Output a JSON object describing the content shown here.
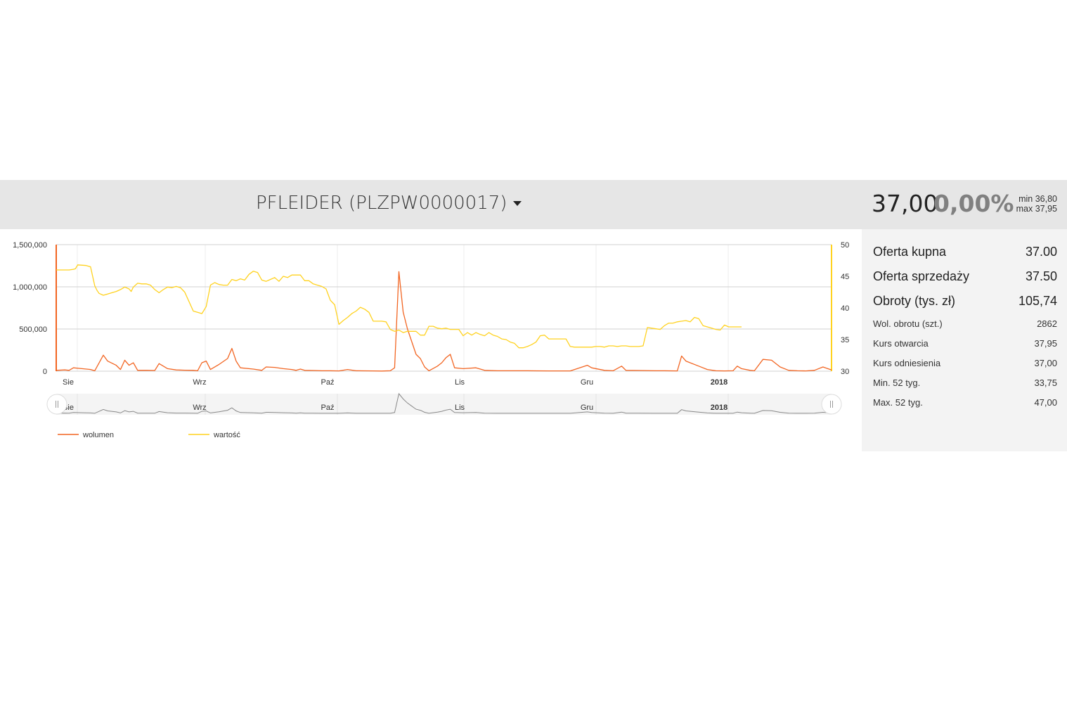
{
  "header": {
    "title": "PFLEIDER (PLZPW0000017)",
    "price": "37,00",
    "change": "0,00%",
    "min": "min 36,80",
    "max": "max 37,95"
  },
  "side": {
    "big": [
      {
        "label": "Oferta kupna",
        "value": "37.00"
      },
      {
        "label": "Oferta sprzedaży",
        "value": "37.50"
      },
      {
        "label": "Obroty (tys. zł)",
        "value": "105,74"
      }
    ],
    "small": [
      {
        "label": "Wol. obrotu (szt.)",
        "value": "2862"
      },
      {
        "label": "Kurs otwarcia",
        "value": "37,95"
      },
      {
        "label": "Kurs odniesienia",
        "value": "37,00"
      },
      {
        "label": "Min. 52 tyg.",
        "value": "33,75"
      },
      {
        "label": "Max. 52 tyg.",
        "value": "47,00"
      }
    ]
  },
  "colors": {
    "volume": "#f26522",
    "value": "#ffd21f",
    "grid": "#d0d0d0",
    "navigator": "#888888",
    "header_bg": "#e6e6e6",
    "side_bg": "#f3f3f3"
  },
  "chart_data": {
    "type": "line",
    "x_months": [
      "Sie",
      "Wrz",
      "Paź",
      "Lis",
      "Gru",
      "2018"
    ],
    "y_left_ticks": [
      "0",
      "500,000",
      "1,000,000",
      "1,500,000"
    ],
    "y_right_ticks": [
      "30",
      "35",
      "40",
      "45",
      "50"
    ],
    "y_left_range": [
      0,
      1500000
    ],
    "y_right_range": [
      30,
      50
    ],
    "x_range_days": [
      0,
      181
    ],
    "navigator_labels": [
      "Sie",
      "Wrz",
      "Paź",
      "Lis",
      "Gru",
      "2018"
    ],
    "series": [
      {
        "name": "wolumen",
        "axis": "left",
        "points": [
          [
            0,
            10000
          ],
          [
            2,
            15000
          ],
          [
            3,
            10000
          ],
          [
            4,
            40000
          ],
          [
            6,
            30000
          ],
          [
            8,
            20000
          ],
          [
            9,
            5000
          ],
          [
            11,
            190000
          ],
          [
            12,
            120000
          ],
          [
            14,
            70000
          ],
          [
            15,
            20000
          ],
          [
            16,
            130000
          ],
          [
            17,
            70000
          ],
          [
            18,
            100000
          ],
          [
            19,
            10000
          ],
          [
            21,
            10000
          ],
          [
            23,
            8000
          ],
          [
            24,
            90000
          ],
          [
            26,
            30000
          ],
          [
            28,
            15000
          ],
          [
            30,
            12000
          ],
          [
            32,
            10000
          ],
          [
            33,
            5000
          ],
          [
            34,
            100000
          ],
          [
            35,
            120000
          ],
          [
            36,
            20000
          ],
          [
            38,
            80000
          ],
          [
            40,
            150000
          ],
          [
            41,
            270000
          ],
          [
            42,
            120000
          ],
          [
            43,
            40000
          ],
          [
            46,
            25000
          ],
          [
            48,
            10000
          ],
          [
            49,
            50000
          ],
          [
            51,
            45000
          ],
          [
            53,
            30000
          ],
          [
            55,
            20000
          ],
          [
            56,
            10000
          ],
          [
            57,
            25000
          ],
          [
            58,
            10000
          ],
          [
            60,
            8000
          ],
          [
            62,
            5000
          ],
          [
            64,
            5000
          ],
          [
            66,
            3000
          ],
          [
            68,
            20000
          ],
          [
            70,
            5000
          ],
          [
            72,
            4000
          ],
          [
            74,
            3000
          ],
          [
            76,
            2000
          ],
          [
            78,
            5000
          ],
          [
            79,
            40000
          ],
          [
            80,
            1180000
          ],
          [
            81,
            700000
          ],
          [
            82,
            500000
          ],
          [
            83,
            350000
          ],
          [
            84,
            200000
          ],
          [
            85,
            150000
          ],
          [
            86,
            50000
          ],
          [
            87,
            5000
          ],
          [
            89,
            60000
          ],
          [
            90,
            100000
          ],
          [
            91,
            160000
          ],
          [
            92,
            200000
          ],
          [
            93,
            40000
          ],
          [
            95,
            30000
          ],
          [
            98,
            40000
          ],
          [
            100,
            10000
          ],
          [
            103,
            5000
          ],
          [
            106,
            5000
          ],
          [
            110,
            5000
          ],
          [
            115,
            3000
          ],
          [
            120,
            3000
          ],
          [
            124,
            70000
          ],
          [
            125,
            40000
          ],
          [
            128,
            10000
          ],
          [
            130,
            5000
          ],
          [
            132,
            60000
          ],
          [
            133,
            10000
          ],
          [
            136,
            8000
          ],
          [
            140,
            5000
          ],
          [
            142,
            5000
          ],
          [
            145,
            3000
          ],
          [
            146,
            180000
          ],
          [
            147,
            120000
          ],
          [
            150,
            60000
          ],
          [
            152,
            20000
          ],
          [
            154,
            5000
          ],
          [
            156,
            3000
          ],
          [
            158,
            5000
          ],
          [
            159,
            60000
          ],
          [
            160,
            30000
          ],
          [
            162,
            10000
          ],
          [
            163,
            5000
          ],
          [
            165,
            140000
          ],
          [
            167,
            130000
          ],
          [
            169,
            50000
          ],
          [
            171,
            10000
          ],
          [
            173,
            5000
          ],
          [
            175,
            3000
          ],
          [
            177,
            10000
          ],
          [
            179,
            50000
          ],
          [
            181,
            15000
          ]
        ]
      },
      {
        "name": "wartość",
        "axis": "right",
        "points": [
          [
            0,
            46
          ],
          [
            3,
            46
          ],
          [
            4,
            46.1
          ],
          [
            4.5,
            46.2
          ],
          [
            5,
            46.8
          ],
          [
            7,
            46.7
          ],
          [
            8,
            46.5
          ],
          [
            9,
            43.5
          ],
          [
            9.5,
            42.8
          ],
          [
            10,
            42.3
          ],
          [
            11,
            42
          ],
          [
            12,
            42.2
          ],
          [
            13,
            42.4
          ],
          [
            14,
            42.6
          ],
          [
            15,
            42.9
          ],
          [
            16,
            43.3
          ],
          [
            17,
            43
          ],
          [
            17.5,
            42.6
          ],
          [
            18,
            43.3
          ],
          [
            19,
            43.9
          ],
          [
            20,
            43.8
          ],
          [
            21,
            43.8
          ],
          [
            22,
            43.6
          ],
          [
            23,
            42.9
          ],
          [
            24,
            42.4
          ],
          [
            25,
            42.9
          ],
          [
            26,
            43.3
          ],
          [
            27,
            43.2
          ],
          [
            28,
            43.4
          ],
          [
            29,
            43.2
          ],
          [
            30,
            42.5
          ],
          [
            31,
            41
          ],
          [
            32,
            39.5
          ],
          [
            33,
            39.3
          ],
          [
            34,
            39.1
          ],
          [
            35,
            40.2
          ],
          [
            36,
            43.6
          ],
          [
            37,
            44
          ],
          [
            38,
            43.7
          ],
          [
            39,
            43.6
          ],
          [
            40,
            43.6
          ],
          [
            41,
            44.5
          ],
          [
            42,
            44.3
          ],
          [
            43,
            44.6
          ],
          [
            44,
            44.4
          ],
          [
            45,
            45.3
          ],
          [
            46,
            45.8
          ],
          [
            47,
            45.6
          ],
          [
            48,
            44.4
          ],
          [
            49,
            44.2
          ],
          [
            50,
            44.5
          ],
          [
            51,
            44.8
          ],
          [
            52,
            44.2
          ],
          [
            53,
            45
          ],
          [
            54,
            44.8
          ],
          [
            55,
            45.2
          ],
          [
            56,
            45.2
          ],
          [
            57,
            45.2
          ],
          [
            58,
            44.3
          ],
          [
            59,
            44.3
          ],
          [
            60,
            43.8
          ],
          [
            61,
            43.6
          ],
          [
            62,
            43.4
          ],
          [
            63,
            43
          ],
          [
            64,
            41.2
          ],
          [
            65,
            40.5
          ],
          [
            66,
            37.4
          ],
          [
            67,
            38
          ],
          [
            68,
            38.5
          ],
          [
            69,
            39.1
          ],
          [
            70,
            39.5
          ],
          [
            71,
            40.1
          ],
          [
            72,
            39.8
          ],
          [
            73,
            39.3
          ],
          [
            74,
            37.9
          ],
          [
            75,
            37.9
          ],
          [
            76,
            37.9
          ],
          [
            77,
            37.8
          ],
          [
            78,
            36.6
          ],
          [
            79,
            36.3
          ],
          [
            80,
            36.5
          ],
          [
            81,
            36.1
          ],
          [
            82,
            36.3
          ],
          [
            83,
            36.3
          ],
          [
            84,
            36.3
          ],
          [
            85,
            35.7
          ],
          [
            86,
            35.7
          ],
          [
            87,
            37.1
          ],
          [
            88,
            37.1
          ],
          [
            89,
            36.8
          ],
          [
            90,
            36.7
          ],
          [
            91,
            36.8
          ],
          [
            92,
            36.6
          ],
          [
            93,
            36.6
          ],
          [
            94,
            36.6
          ],
          [
            95,
            35.6
          ],
          [
            96,
            36.1
          ],
          [
            97,
            35.7
          ],
          [
            98,
            36.1
          ],
          [
            99,
            35.8
          ],
          [
            100,
            35.6
          ],
          [
            101,
            36.1
          ],
          [
            102,
            35.7
          ],
          [
            103,
            35.5
          ],
          [
            104,
            35.1
          ],
          [
            105,
            35
          ],
          [
            106,
            34.6
          ],
          [
            107,
            34.4
          ],
          [
            108,
            33.7
          ],
          [
            109,
            33.7
          ],
          [
            110,
            33.9
          ],
          [
            111,
            34.2
          ],
          [
            112,
            34.6
          ],
          [
            113,
            35.6
          ],
          [
            114,
            35.7
          ],
          [
            115,
            35.1
          ],
          [
            116,
            35.1
          ],
          [
            117,
            35.1
          ],
          [
            118,
            35.1
          ],
          [
            119,
            35.1
          ],
          [
            120,
            33.9
          ],
          [
            121,
            33.8
          ],
          [
            122,
            33.8
          ],
          [
            123,
            33.8
          ],
          [
            124,
            33.8
          ],
          [
            125,
            33.8
          ],
          [
            126,
            33.9
          ],
          [
            127,
            33.9
          ],
          [
            128,
            33.8
          ],
          [
            129,
            34
          ],
          [
            130,
            34
          ],
          [
            131,
            33.9
          ],
          [
            132,
            34
          ],
          [
            133,
            34
          ],
          [
            134,
            33.9
          ],
          [
            135,
            33.9
          ],
          [
            136,
            33.9
          ],
          [
            137,
            34
          ],
          [
            138,
            36.9
          ],
          [
            139,
            36.8
          ],
          [
            140,
            36.7
          ],
          [
            141,
            36.6
          ],
          [
            142,
            37.2
          ],
          [
            143,
            37.6
          ],
          [
            144,
            37.6
          ],
          [
            145,
            37.8
          ],
          [
            146,
            37.9
          ],
          [
            147,
            38
          ],
          [
            148,
            37.8
          ],
          [
            149,
            38.5
          ],
          [
            150,
            38.3
          ],
          [
            151,
            37.2
          ],
          [
            152,
            37
          ],
          [
            153,
            36.8
          ],
          [
            154,
            36.6
          ],
          [
            155,
            36.5
          ],
          [
            156,
            37.3
          ],
          [
            157,
            37
          ],
          [
            158,
            37
          ],
          [
            159,
            37
          ],
          [
            160,
            37
          ]
        ]
      }
    ]
  },
  "legend": [
    {
      "name": "wolumen"
    },
    {
      "name": "wartość"
    }
  ]
}
